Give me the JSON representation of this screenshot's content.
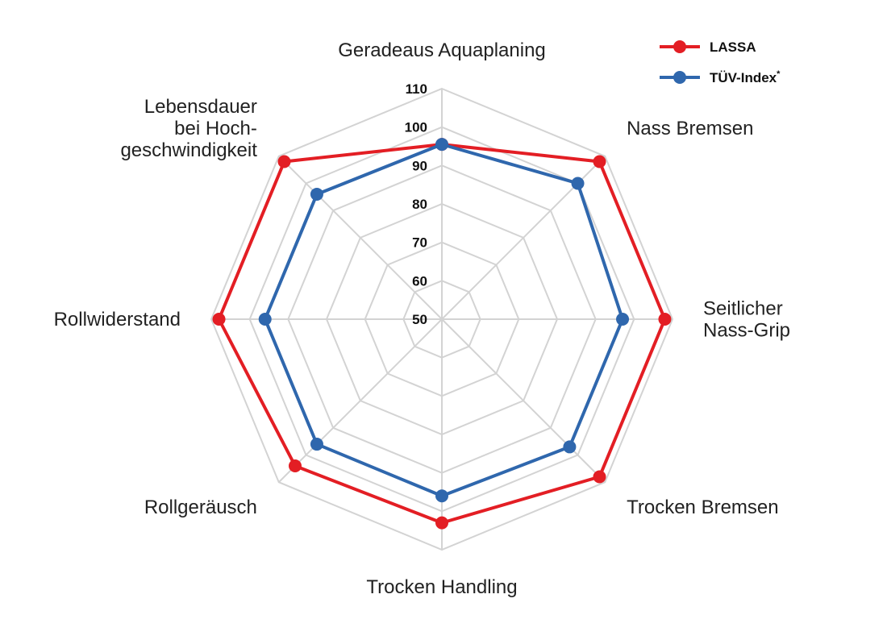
{
  "chart_data": {
    "type": "radar",
    "axes": [
      [
        "Geradeaus Aquaplaning"
      ],
      [
        "Nass Bremsen"
      ],
      [
        "Seitlicher",
        "Nass-Grip"
      ],
      [
        "Trocken Bremsen"
      ],
      [
        "Trocken Handling"
      ],
      [
        "Rollgeräusch"
      ],
      [
        "Rollwiderstand"
      ],
      [
        "Lebensdauer",
        "bei Hoch-",
        "geschwindigkeit"
      ]
    ],
    "rlim": [
      50,
      110
    ],
    "ticks": [
      "50",
      "60",
      "70",
      "80",
      "90",
      "100",
      "110"
    ],
    "grid": true,
    "legend_position": "top-right",
    "series": [
      {
        "name": "LASSA",
        "color": "#e31e24",
        "values": [
          95.5,
          108,
          108,
          108,
          103,
          104,
          108,
          108
        ]
      },
      {
        "name": "TÜV-Index",
        "name_sup": "*",
        "color": "#2f67ad",
        "values": [
          95.5,
          100,
          97,
          97,
          96,
          96,
          96,
          96
        ]
      }
    ]
  }
}
